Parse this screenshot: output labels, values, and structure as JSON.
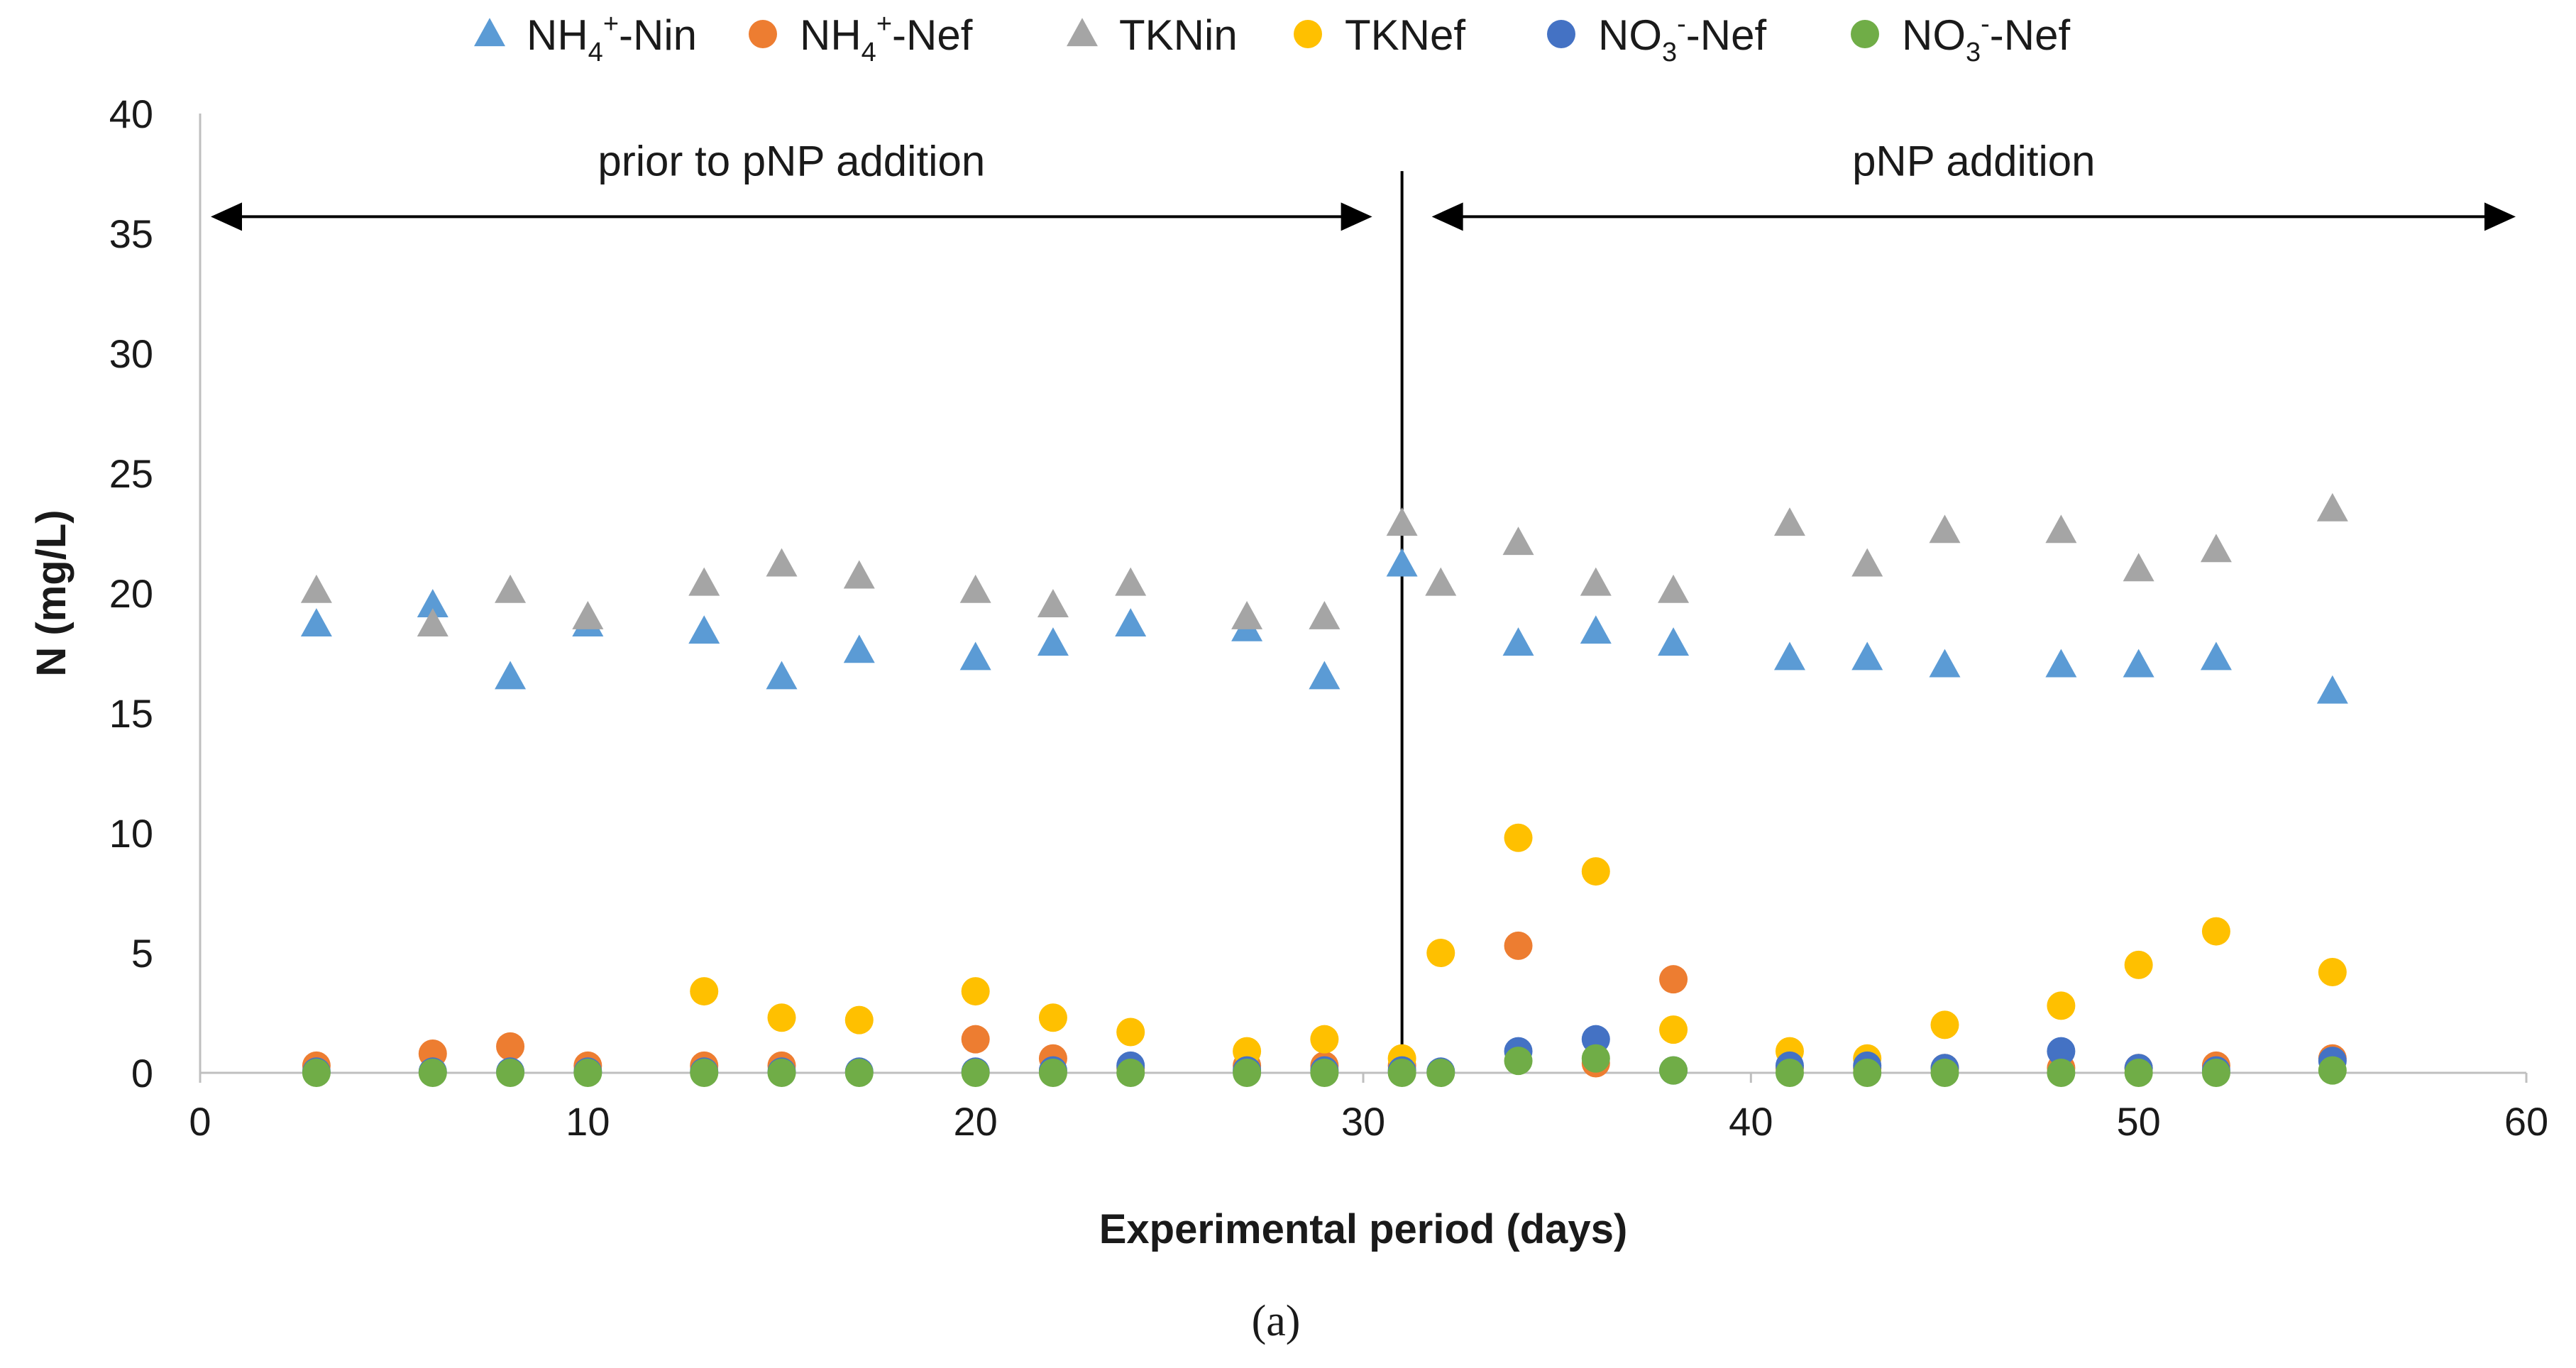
{
  "chart_data": {
    "type": "scatter",
    "title": "",
    "xlabel": "Experimental period (days)",
    "ylabel": "N (mg/L)",
    "xlim": [
      0,
      60
    ],
    "ylim": [
      0,
      40
    ],
    "xticks": [
      0,
      10,
      20,
      30,
      40,
      50,
      60
    ],
    "yticks": [
      0,
      5,
      10,
      15,
      20,
      25,
      30,
      35,
      40
    ],
    "grid": false,
    "legend_position": "top",
    "caption": "(a)",
    "series": [
      {
        "name": "NH4+-Nin",
        "label_parts": [
          "NH",
          "4",
          "+",
          "-Nin"
        ],
        "marker": "triangle",
        "color": "#5B9BD5",
        "points": [
          [
            3,
            18.7
          ],
          [
            6,
            19.5
          ],
          [
            8,
            16.5
          ],
          [
            10,
            18.7
          ],
          [
            13,
            18.4
          ],
          [
            15,
            16.5
          ],
          [
            17,
            17.6
          ],
          [
            20,
            17.3
          ],
          [
            22,
            17.9
          ],
          [
            24,
            18.7
          ],
          [
            27,
            18.5
          ],
          [
            29,
            16.5
          ],
          [
            31,
            21.2
          ],
          [
            34,
            17.9
          ],
          [
            36,
            18.4
          ],
          [
            38,
            17.9
          ],
          [
            41,
            17.3
          ],
          [
            43,
            17.3
          ],
          [
            45,
            17.0
          ],
          [
            48,
            17.0
          ],
          [
            50,
            17.0
          ],
          [
            52,
            17.3
          ],
          [
            55,
            15.9
          ]
        ]
      },
      {
        "name": "NH4+-Nef",
        "label_parts": [
          "NH",
          "4",
          "+",
          "-Nef"
        ],
        "marker": "circle",
        "color": "#ED7D31",
        "points": [
          [
            3,
            0.3
          ],
          [
            6,
            0.8
          ],
          [
            8,
            1.1
          ],
          [
            10,
            0.3
          ],
          [
            13,
            0.3
          ],
          [
            15,
            0.3
          ],
          [
            20,
            1.4
          ],
          [
            22,
            0.6
          ],
          [
            24,
            0.2
          ],
          [
            27,
            0.3
          ],
          [
            29,
            0.3
          ],
          [
            31,
            0.3
          ],
          [
            34,
            5.3
          ],
          [
            36,
            0.4
          ],
          [
            38,
            3.9
          ],
          [
            41,
            0.2
          ],
          [
            43,
            0.2
          ],
          [
            45,
            0.2
          ],
          [
            48,
            0.2
          ],
          [
            50,
            0.2
          ],
          [
            52,
            0.3
          ],
          [
            55,
            0.6
          ]
        ]
      },
      {
        "name": "TKNin",
        "label_parts": [
          "TKNin"
        ],
        "marker": "triangle",
        "color": "#A5A5A5",
        "points": [
          [
            3,
            20.1
          ],
          [
            6,
            18.7
          ],
          [
            8,
            20.1
          ],
          [
            10,
            19.0
          ],
          [
            13,
            20.4
          ],
          [
            15,
            21.2
          ],
          [
            17,
            20.7
          ],
          [
            20,
            20.1
          ],
          [
            22,
            19.5
          ],
          [
            24,
            20.4
          ],
          [
            27,
            19.0
          ],
          [
            29,
            19.0
          ],
          [
            31,
            22.9
          ],
          [
            32,
            20.4
          ],
          [
            34,
            22.1
          ],
          [
            36,
            20.4
          ],
          [
            38,
            20.1
          ],
          [
            41,
            22.9
          ],
          [
            43,
            21.2
          ],
          [
            45,
            22.6
          ],
          [
            48,
            22.6
          ],
          [
            50,
            21.0
          ],
          [
            52,
            21.8
          ],
          [
            55,
            23.5
          ]
        ]
      },
      {
        "name": "TKNef",
        "label_parts": [
          "TKNef"
        ],
        "marker": "circle",
        "color": "#FFC000",
        "points": [
          [
            13,
            3.4
          ],
          [
            15,
            2.3
          ],
          [
            17,
            2.2
          ],
          [
            20,
            3.4
          ],
          [
            22,
            2.3
          ],
          [
            24,
            1.7
          ],
          [
            27,
            0.9
          ],
          [
            29,
            1.4
          ],
          [
            31,
            0.6
          ],
          [
            32,
            5.0
          ],
          [
            34,
            9.8
          ],
          [
            36,
            8.4
          ],
          [
            38,
            1.8
          ],
          [
            41,
            0.9
          ],
          [
            43,
            0.6
          ],
          [
            45,
            2.0
          ],
          [
            48,
            2.8
          ],
          [
            50,
            4.5
          ],
          [
            52,
            5.9
          ],
          [
            55,
            4.2
          ]
        ]
      },
      {
        "name": "NO3--Nef",
        "label_parts": [
          "NO",
          "3",
          "-",
          "-Nef"
        ],
        "marker": "circle",
        "color": "#4472C4",
        "points": [
          [
            3,
            0.05
          ],
          [
            6,
            0.05
          ],
          [
            8,
            0.05
          ],
          [
            10,
            0.05
          ],
          [
            13,
            0.05
          ],
          [
            15,
            0.05
          ],
          [
            17,
            0.05
          ],
          [
            20,
            0.05
          ],
          [
            22,
            0.1
          ],
          [
            24,
            0.3
          ],
          [
            27,
            0.1
          ],
          [
            29,
            0.1
          ],
          [
            31,
            0.1
          ],
          [
            32,
            0.05
          ],
          [
            34,
            0.9
          ],
          [
            36,
            1.4
          ],
          [
            38,
            0.1
          ],
          [
            41,
            0.3
          ],
          [
            43,
            0.3
          ],
          [
            45,
            0.2
          ],
          [
            48,
            0.9
          ],
          [
            50,
            0.2
          ],
          [
            52,
            0.1
          ],
          [
            55,
            0.5
          ]
        ]
      },
      {
        "name": "NO3--Nef",
        "label_parts": [
          "NO",
          "3",
          "-",
          "-Nef"
        ],
        "marker": "circle",
        "color": "#70AD47",
        "points": [
          [
            3,
            0.0
          ],
          [
            6,
            0.0
          ],
          [
            8,
            0.0
          ],
          [
            10,
            0.0
          ],
          [
            13,
            0.0
          ],
          [
            15,
            0.0
          ],
          [
            17,
            0.0
          ],
          [
            20,
            0.0
          ],
          [
            22,
            0.0
          ],
          [
            24,
            0.0
          ],
          [
            27,
            0.0
          ],
          [
            29,
            0.0
          ],
          [
            31,
            0.0
          ],
          [
            32,
            0.0
          ],
          [
            34,
            0.5
          ],
          [
            36,
            0.6
          ],
          [
            38,
            0.1
          ],
          [
            41,
            0.0
          ],
          [
            43,
            0.0
          ],
          [
            45,
            0.0
          ],
          [
            48,
            0.0
          ],
          [
            50,
            0.0
          ],
          [
            52,
            0.0
          ],
          [
            55,
            0.1
          ]
        ]
      }
    ],
    "annotations": [
      {
        "text": "prior to pNP addition",
        "from_x": 0,
        "to_x": 31,
        "arrow_y": 35.7,
        "text_y": 38.0
      },
      {
        "text": "pNP addition",
        "from_x": 31,
        "to_x": 60,
        "arrow_y": 35.7,
        "text_y": 38.0
      }
    ],
    "divider_x": 31,
    "divider_top_y": 37.6
  }
}
